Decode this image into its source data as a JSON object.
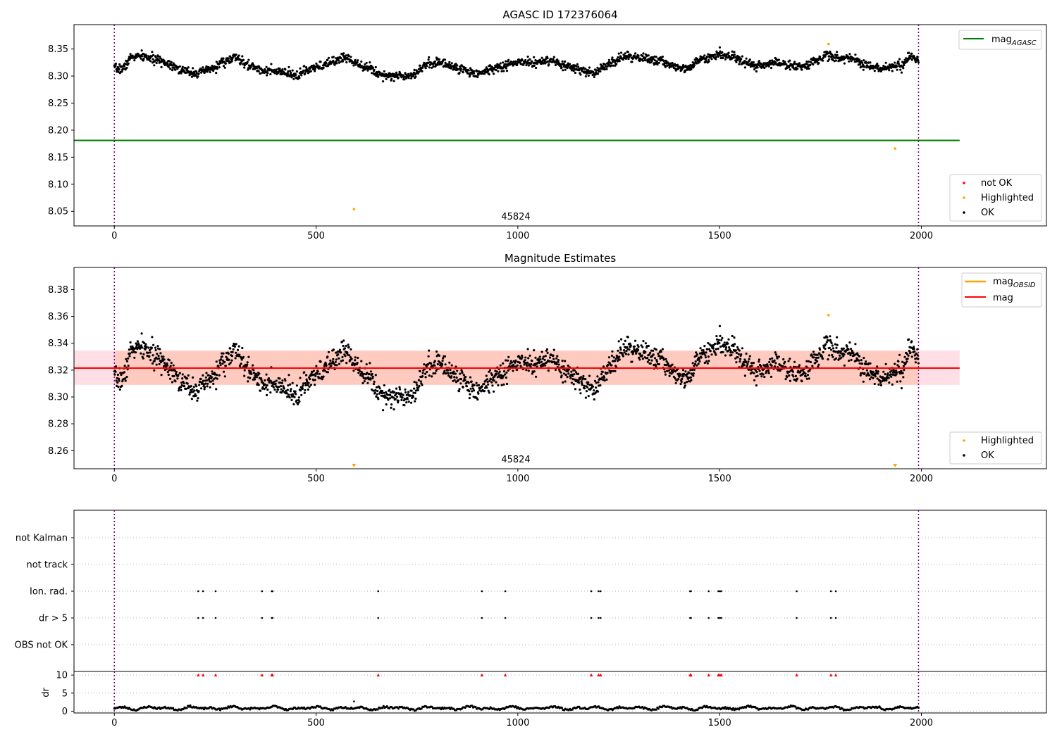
{
  "chart_data": [
    {
      "type": "scatter",
      "title": "AGASC ID 172376064",
      "xlim": [
        -100,
        2310
      ],
      "ylim": [
        8.023,
        8.395
      ],
      "xticks": [
        0,
        500,
        1000,
        1500,
        2000
      ],
      "yticks": [
        8.05,
        8.1,
        8.15,
        8.2,
        8.25,
        8.3,
        8.35
      ],
      "ytick_labels": [
        "8.05",
        "8.10",
        "8.15",
        "8.20",
        "8.25",
        "8.30",
        "8.35"
      ],
      "vlines": [
        0,
        1993
      ],
      "obsid_label": {
        "text": "45824",
        "x": 996
      },
      "reference_line": {
        "name": "mag_AGASC",
        "value": 8.181,
        "x_range": [
          -100,
          2095
        ],
        "color": "#008000"
      },
      "highlighted_points": [
        [
          594,
          8.054
        ],
        [
          1770,
          8.359
        ],
        [
          1935,
          8.166
        ]
      ],
      "series_base": {
        "x_range": [
          0,
          1993
        ],
        "count": 2000,
        "seed": 7
      },
      "legend_upper": [
        {
          "label_main": "mag",
          "label_sub": "AGASC",
          "color": "#008000",
          "kind": "line"
        }
      ],
      "legend_lower": [
        {
          "label": "not OK",
          "color": "#ff0000",
          "kind": "dot"
        },
        {
          "label": "Highlighted",
          "color": "#ffa500",
          "kind": "dot"
        },
        {
          "label": "OK",
          "color": "#000000",
          "kind": "dot"
        }
      ]
    },
    {
      "type": "scatter",
      "title": "Magnitude Estimates",
      "xlim": [
        -100,
        2310
      ],
      "ylim": [
        8.2465,
        8.3965
      ],
      "xticks": [
        0,
        500,
        1000,
        1500,
        2000
      ],
      "yticks": [
        8.26,
        8.28,
        8.3,
        8.32,
        8.34,
        8.36,
        8.38
      ],
      "ytick_labels": [
        "8.26",
        "8.28",
        "8.30",
        "8.32",
        "8.34",
        "8.36",
        "8.38"
      ],
      "vlines": [
        0,
        1993
      ],
      "obsid_label": {
        "text": "45824",
        "x": 996
      },
      "mag_line": {
        "name": "mag",
        "value": 8.3215,
        "color": "#ff0000",
        "x_range": [
          -100,
          2095
        ]
      },
      "mag_band": {
        "low": 8.309,
        "high": 8.3345,
        "x_range": [
          -100,
          2095
        ]
      },
      "obsid_band": {
        "low": 8.309,
        "high": 8.3345,
        "x_range": [
          0,
          1993
        ]
      },
      "highlighted_points": [
        [
          1770,
          8.361
        ]
      ],
      "offscale_markers": [
        594,
        1935
      ],
      "legend_upper": [
        {
          "label_main": "mag",
          "label_sub": "OBSID",
          "color": "#ffa500",
          "kind": "line"
        },
        {
          "label_main": "mag",
          "label_sub": "",
          "color": "#ff0000",
          "kind": "line"
        }
      ],
      "legend_lower": [
        {
          "label": "Highlighted",
          "color": "#ffa500",
          "kind": "dot"
        },
        {
          "label": "OK",
          "color": "#000000",
          "kind": "dot"
        }
      ]
    },
    {
      "type": "scatter",
      "title": "",
      "xlim": [
        -100,
        2310
      ],
      "xticks": [
        0,
        500,
        1000,
        1500,
        2000
      ],
      "vlines": [
        0,
        1993
      ],
      "flag_rows": [
        "not Kalman",
        "not track",
        "Ion. rad.",
        "dr > 5",
        "OBS not OK"
      ],
      "flag_events_x": [
        208,
        220,
        251,
        366,
        390,
        392,
        654,
        911,
        969,
        1182,
        1200,
        1205,
        1427,
        1429,
        1473,
        1497,
        1501,
        1504,
        1691,
        1776,
        1788
      ],
      "flag_events_rows": [
        "Ion. rad.",
        "dr > 5"
      ],
      "dr_ylabel": "dr",
      "dr_ylim": [
        -0.5,
        11
      ],
      "dr_yticks": [
        0,
        5,
        10
      ],
      "dr_ytick_labels": [
        "0",
        "5",
        "10"
      ],
      "dr_outlier": [
        594,
        2.7
      ],
      "dr_clip_markers_at": 10
    }
  ]
}
